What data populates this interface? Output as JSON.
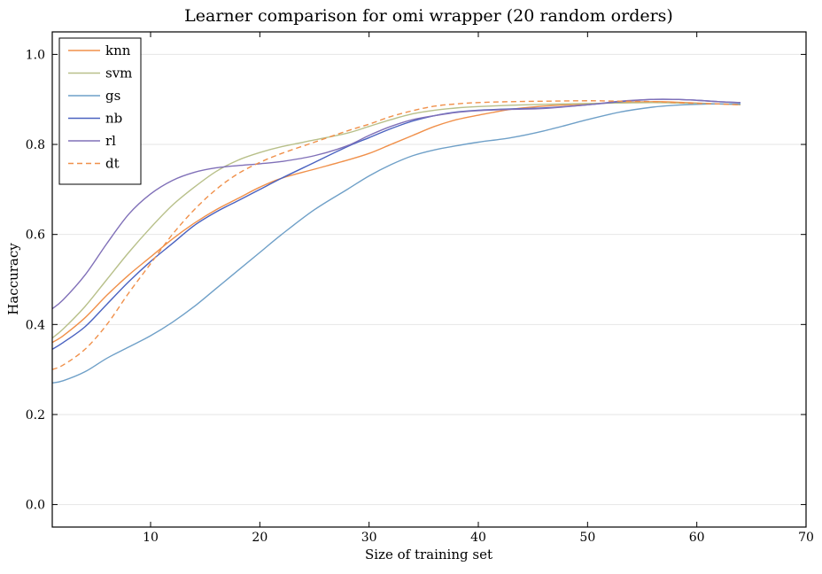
{
  "chart_data": {
    "type": "line",
    "title": "Learner comparison for omi wrapper (20 random orders)",
    "xlabel": "Size of training set",
    "ylabel": "Haccuracy",
    "xlim": [
      1,
      70
    ],
    "ylim": [
      -0.05,
      1.05
    ],
    "xticks": [
      10,
      20,
      30,
      40,
      50,
      60,
      70
    ],
    "yticks": [
      0.0,
      0.2,
      0.4,
      0.6,
      0.8,
      1.0
    ],
    "grid": "horizontal",
    "legend_position": "top-left",
    "x": [
      1,
      2,
      4,
      6,
      8,
      10,
      12,
      14,
      16,
      18,
      20,
      22,
      25,
      28,
      30,
      32,
      34,
      36,
      38,
      40,
      43,
      46,
      50,
      53,
      56,
      58,
      60,
      62,
      64
    ],
    "series": [
      {
        "name": "knn",
        "color": "#f0904a",
        "dashed": false,
        "values": [
          0.36,
          0.375,
          0.415,
          0.465,
          0.51,
          0.55,
          0.59,
          0.625,
          0.655,
          0.68,
          0.705,
          0.725,
          0.745,
          0.765,
          0.78,
          0.8,
          0.82,
          0.84,
          0.855,
          0.865,
          0.878,
          0.885,
          0.89,
          0.893,
          0.895,
          0.894,
          0.892,
          0.89,
          0.888
        ]
      },
      {
        "name": "svm",
        "color": "#b8c08a",
        "dashed": false,
        "values": [
          0.37,
          0.39,
          0.44,
          0.5,
          0.56,
          0.615,
          0.665,
          0.705,
          0.74,
          0.765,
          0.782,
          0.795,
          0.81,
          0.825,
          0.84,
          0.855,
          0.868,
          0.876,
          0.881,
          0.884,
          0.887,
          0.889,
          0.891,
          0.892,
          0.893,
          0.892,
          0.891,
          0.89,
          0.889
        ]
      },
      {
        "name": "gs",
        "color": "#6fa0c8",
        "dashed": false,
        "values": [
          0.27,
          0.275,
          0.295,
          0.325,
          0.35,
          0.375,
          0.405,
          0.44,
          0.48,
          0.52,
          0.56,
          0.6,
          0.655,
          0.7,
          0.73,
          0.755,
          0.775,
          0.788,
          0.797,
          0.805,
          0.815,
          0.83,
          0.855,
          0.872,
          0.883,
          0.887,
          0.889,
          0.89,
          0.89
        ]
      },
      {
        "name": "nb",
        "color": "#4a62c0",
        "dashed": false,
        "values": [
          0.345,
          0.36,
          0.395,
          0.445,
          0.495,
          0.54,
          0.58,
          0.62,
          0.65,
          0.675,
          0.7,
          0.725,
          0.76,
          0.795,
          0.815,
          0.835,
          0.852,
          0.864,
          0.872,
          0.876,
          0.879,
          0.881,
          0.888,
          0.895,
          0.9,
          0.9,
          0.898,
          0.895,
          0.893
        ]
      },
      {
        "name": "rl",
        "color": "#8070b8",
        "dashed": false,
        "values": [
          0.435,
          0.455,
          0.51,
          0.58,
          0.645,
          0.69,
          0.72,
          0.738,
          0.748,
          0.753,
          0.757,
          0.762,
          0.775,
          0.797,
          0.82,
          0.84,
          0.855,
          0.864,
          0.871,
          0.875,
          0.878,
          0.88,
          0.888,
          0.896,
          0.9,
          0.9,
          0.898,
          0.895,
          0.893
        ]
      },
      {
        "name": "dt",
        "color": "#f0904a",
        "dashed": true,
        "values": [
          0.3,
          0.31,
          0.345,
          0.4,
          0.47,
          0.535,
          0.6,
          0.655,
          0.7,
          0.735,
          0.76,
          0.78,
          0.805,
          0.83,
          0.845,
          0.862,
          0.875,
          0.885,
          0.89,
          0.893,
          0.895,
          0.896,
          0.897,
          0.896,
          0.895,
          0.893,
          0.891,
          0.89,
          0.888
        ]
      }
    ]
  }
}
